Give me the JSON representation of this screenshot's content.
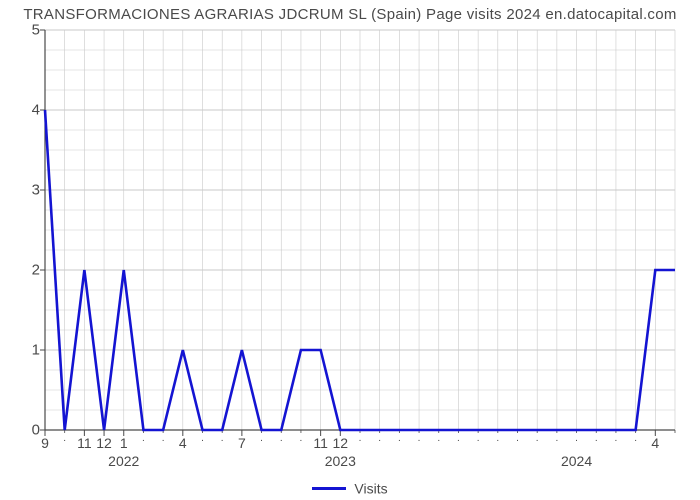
{
  "title": "TRANSFORMACIONES AGRARIAS JDCRUM SL (Spain) Page visits 2024 en.datocapital.com",
  "chart": {
    "type": "line",
    "background_color": "#ffffff",
    "grid_color": "#c9c9c9",
    "grid_width": 0.6,
    "axis_color": "#4a4a4a",
    "title_color": "#4a4a4a",
    "title_fontsize": 15,
    "tick_fontsize": 14,
    "line_color": "#1414d2",
    "line_width": 2.6,
    "ylim": [
      0,
      5
    ],
    "yticks": [
      0,
      1,
      2,
      3,
      4,
      5
    ],
    "ytick_minor_step": 0.25,
    "x_count": 33,
    "xtick_labels": [
      {
        "idx": 0,
        "label": "9"
      },
      {
        "idx": 2,
        "label": "11"
      },
      {
        "idx": 3,
        "label": "12"
      },
      {
        "idx": 4,
        "label": "1"
      },
      {
        "idx": 7,
        "label": "4"
      },
      {
        "idx": 10,
        "label": "7"
      },
      {
        "idx": 14,
        "label": "11"
      },
      {
        "idx": 15,
        "label": "12"
      },
      {
        "idx": 31,
        "label": "4"
      }
    ],
    "xtick_minor": [
      1,
      5,
      6,
      8,
      9,
      11,
      12,
      13,
      16,
      17,
      18,
      19,
      20,
      21,
      22,
      23,
      24,
      25,
      26,
      27,
      28,
      29,
      30
    ],
    "xyear_labels": [
      {
        "idx": 4,
        "label": "2022"
      },
      {
        "idx": 15,
        "label": "2023"
      },
      {
        "idx": 27,
        "label": "2024"
      }
    ],
    "y_values": [
      4,
      0,
      2,
      0,
      2,
      0,
      0,
      1,
      0,
      0,
      1,
      0,
      0,
      1,
      1,
      0,
      0,
      0,
      0,
      0,
      0,
      0,
      0,
      0,
      0,
      0,
      0,
      0,
      0,
      0,
      0,
      2,
      2
    ],
    "legend": {
      "label": "Visits",
      "color": "#1414d2",
      "line_width": 3
    }
  }
}
